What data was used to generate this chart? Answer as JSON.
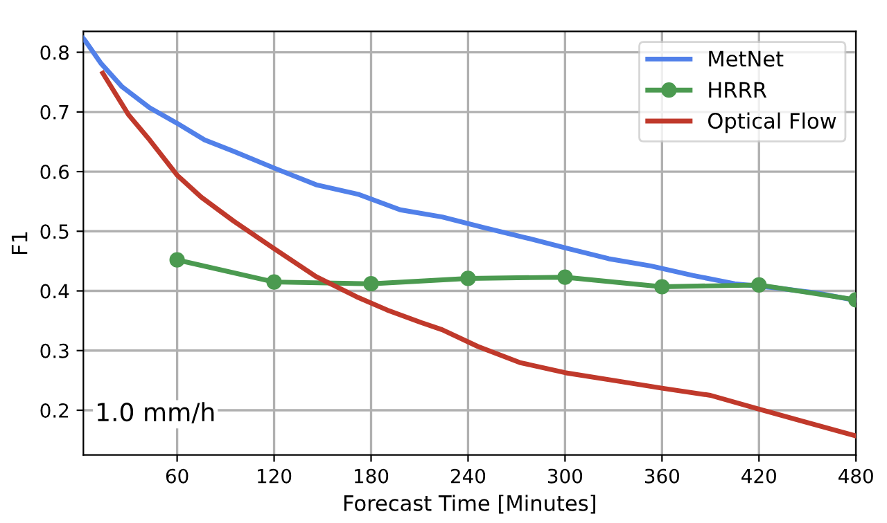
{
  "chart_data": {
    "type": "line",
    "xlabel": "Forecast Time [Minutes]",
    "ylabel": "F1",
    "xlim": [
      2,
      480
    ],
    "ylim": [
      0.125,
      0.835
    ],
    "xticks": [
      60,
      120,
      180,
      240,
      300,
      360,
      420,
      480
    ],
    "yticks": [
      0.2,
      0.3,
      0.4,
      0.5,
      0.6,
      0.7,
      0.8
    ],
    "grid": true,
    "legend": "top right",
    "annotations": [
      "1.0 mm/h"
    ],
    "series": [
      {
        "name": "MetNet",
        "color": "#5180e9",
        "marker": "none",
        "x": [
          2,
          4,
          13,
          26,
          43,
          60,
          77,
          95,
          120,
          146,
          172,
          198,
          224,
          250,
          276,
          302,
          327,
          353,
          379,
          405,
          431,
          457,
          480
        ],
        "values": [
          0.823,
          0.816,
          0.781,
          0.742,
          0.707,
          0.681,
          0.653,
          0.634,
          0.606,
          0.578,
          0.562,
          0.536,
          0.524,
          0.506,
          0.489,
          0.471,
          0.454,
          0.442,
          0.426,
          0.412,
          0.405,
          0.396,
          0.384
        ]
      },
      {
        "name": "HRRR",
        "color": "#4b9a50",
        "marker": "circle",
        "x": [
          60,
          120,
          180,
          240,
          300,
          360,
          420,
          480
        ],
        "values": [
          0.452,
          0.415,
          0.412,
          0.421,
          0.423,
          0.407,
          0.41,
          0.385
        ]
      },
      {
        "name": "Optical Flow",
        "color": "#c0392b",
        "marker": "none",
        "x": [
          14,
          30,
          43,
          60,
          75,
          95,
          120,
          146,
          172,
          190,
          211,
          224,
          246,
          272,
          300,
          330,
          360,
          390,
          420,
          445,
          480
        ],
        "values": [
          0.765,
          0.695,
          0.653,
          0.594,
          0.557,
          0.517,
          0.471,
          0.424,
          0.389,
          0.368,
          0.347,
          0.335,
          0.307,
          0.28,
          0.263,
          0.25,
          0.237,
          0.225,
          0.202,
          0.183,
          0.157
        ]
      }
    ]
  }
}
